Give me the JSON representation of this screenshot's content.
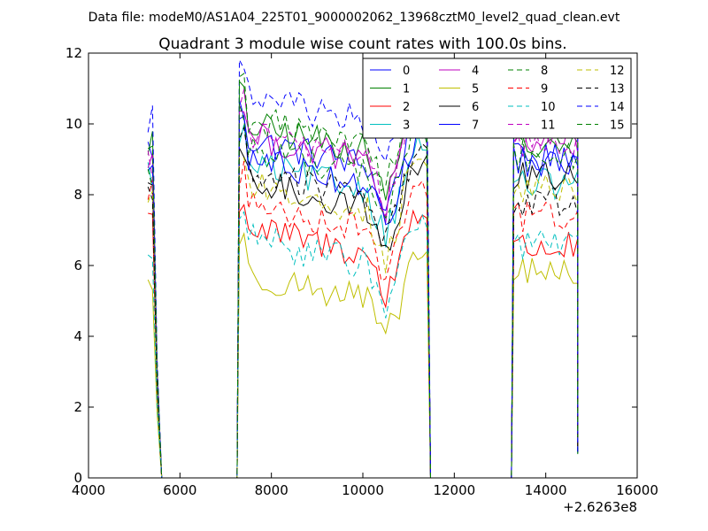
{
  "figure": {
    "suptitle": "Data file: modeM0/AS1A04_225T01_9000002062_13968cztM0_level2_quad_clean.evt"
  },
  "chart_data": {
    "type": "line",
    "title": "Quadrant 3 module wise count rates with 100.0s bins.",
    "xlabel": "",
    "ylabel": "",
    "xlim": [
      4000,
      16000
    ],
    "ylim": [
      0,
      12
    ],
    "x_offset_label": "+2.6263e8",
    "x_ticks": [
      4000,
      6000,
      8000,
      10000,
      12000,
      14000,
      16000
    ],
    "x_tick_labels": [
      "4000",
      "6000",
      "8000",
      "10000",
      "12000",
      "14000",
      "16000"
    ],
    "y_ticks": [
      0,
      2,
      4,
      6,
      8,
      10,
      12
    ],
    "y_tick_labels": [
      "0",
      "2",
      "4",
      "6",
      "8",
      "10",
      "12"
    ],
    "grid": false,
    "legend_position": "top-right",
    "legend_columns": 4,
    "segments": [
      {
        "start": 5300,
        "end": 5600
      },
      {
        "start": 7300,
        "end": 11400
      },
      {
        "start": 13300,
        "end": 14700
      }
    ],
    "gaps": [
      {
        "start": 5600,
        "end": 7300
      },
      {
        "start": 11400,
        "end": 13300
      }
    ],
    "series": [
      {
        "name": "0",
        "color": "#0000ff",
        "style": "solid",
        "levels": [
          9.3,
          9.6,
          9.0
        ]
      },
      {
        "name": "1",
        "color": "#008000",
        "style": "solid",
        "levels": [
          9.5,
          10.0,
          9.3
        ]
      },
      {
        "name": "2",
        "color": "#ff0000",
        "style": "solid",
        "levels": [
          7.5,
          7.1,
          6.5
        ]
      },
      {
        "name": "3",
        "color": "#00bfbf",
        "style": "solid",
        "levels": [
          8.6,
          8.9,
          8.3
        ]
      },
      {
        "name": "4",
        "color": "#bf00bf",
        "style": "solid",
        "levels": [
          9.0,
          9.7,
          9.6
        ]
      },
      {
        "name": "5",
        "color": "#bfbf00",
        "style": "solid",
        "levels": [
          5.5,
          5.8,
          5.8
        ]
      },
      {
        "name": "6",
        "color": "#000000",
        "style": "solid",
        "levels": [
          7.9,
          8.4,
          8.5
        ]
      },
      {
        "name": "7",
        "color": "#0000ff",
        "style": "solid",
        "levels": [
          8.8,
          9.1,
          8.9
        ]
      },
      {
        "name": "8",
        "color": "#008000",
        "style": "dashed",
        "levels": [
          8.5,
          9.4,
          9.1
        ]
      },
      {
        "name": "9",
        "color": "#ff0000",
        "style": "dashed",
        "levels": [
          8.2,
          7.8,
          7.4
        ]
      },
      {
        "name": "10",
        "color": "#00bfbf",
        "style": "dashed",
        "levels": [
          6.3,
          6.8,
          6.6
        ]
      },
      {
        "name": "11",
        "color": "#bf00bf",
        "style": "dashed",
        "levels": [
          8.9,
          9.8,
          9.5
        ]
      },
      {
        "name": "12",
        "color": "#bfbf00",
        "style": "dashed",
        "levels": [
          8.0,
          8.3,
          8.2
        ]
      },
      {
        "name": "13",
        "color": "#000000",
        "style": "dashed",
        "levels": [
          8.1,
          8.7,
          7.8
        ]
      },
      {
        "name": "14",
        "color": "#0000ff",
        "style": "dashed",
        "levels": [
          10.2,
          10.8,
          10.4
        ]
      },
      {
        "name": "15",
        "color": "#008000",
        "style": "dashed",
        "levels": [
          9.4,
          10.2,
          9.9
        ]
      }
    ]
  }
}
